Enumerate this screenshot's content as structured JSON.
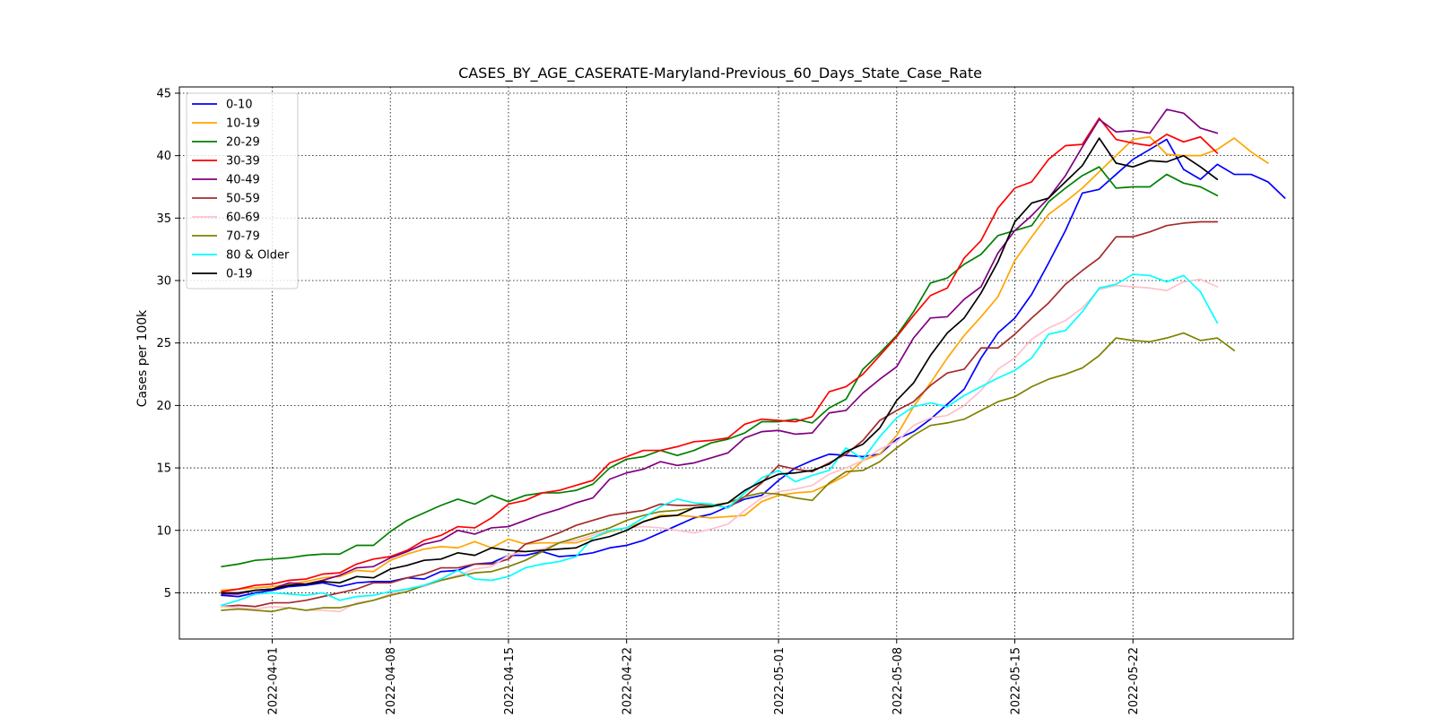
{
  "chart_data": {
    "type": "line",
    "title": "CASES_BY_AGE_CASERATE-Maryland-Previous_60_Days_State_Case_Rate",
    "xlabel": "",
    "ylabel": "Cases per 100k",
    "x_start": "2022-03-29",
    "x_range": [
      -2.5,
      63.5
    ],
    "ylim": [
      1.3,
      45.5
    ],
    "y_ticks": [
      5,
      10,
      15,
      20,
      25,
      30,
      35,
      40,
      45
    ],
    "x_ticks": [
      {
        "label": "2022-04-01",
        "day": 3
      },
      {
        "label": "2022-04-08",
        "day": 10
      },
      {
        "label": "2022-04-15",
        "day": 17
      },
      {
        "label": "2022-04-22",
        "day": 24
      },
      {
        "label": "2022-05-01",
        "day": 33
      },
      {
        "label": "2022-05-08",
        "day": 40
      },
      {
        "label": "2022-05-15",
        "day": 47
      },
      {
        "label": "2022-05-22",
        "day": 54
      }
    ],
    "grid": true,
    "legend_position": "upper-left",
    "series": [
      {
        "name": "0-10",
        "color": "#0000ff",
        "values": [
          4.8,
          4.7,
          5.0,
          5.2,
          5.5,
          5.6,
          5.8,
          5.5,
          5.8,
          5.9,
          5.9,
          6.2,
          6.1,
          6.7,
          6.8,
          7.3,
          7.4,
          8.0,
          8.0,
          8.3,
          7.9,
          8.0,
          8.2,
          8.6,
          8.8,
          9.2,
          9.8,
          10.4,
          11.0,
          11.3,
          11.9,
          12.5,
          12.8,
          14.0,
          15.0,
          15.6,
          16.1,
          16.0,
          15.9,
          16.1,
          17.3,
          17.9,
          18.9,
          20.1,
          21.3,
          23.8,
          25.8,
          27.0,
          28.9,
          31.4,
          34.0,
          37.0,
          37.3,
          38.5,
          39.7,
          40.5,
          41.3,
          38.9,
          38.1,
          39.3,
          38.5,
          38.5,
          37.9,
          36.6
        ]
      },
      {
        "name": "10-19",
        "color": "#ffa500",
        "values": [
          5.2,
          5.3,
          5.4,
          5.5,
          5.7,
          5.9,
          6.2,
          6.3,
          6.8,
          6.7,
          7.6,
          8.1,
          8.5,
          8.7,
          8.6,
          9.1,
          8.6,
          9.3,
          8.9,
          9.0,
          9.0,
          9.0,
          9.4,
          9.9,
          10.2,
          10.7,
          11.2,
          11.2,
          11.1,
          11.0,
          11.1,
          11.2,
          12.3,
          12.8,
          13.0,
          13.1,
          13.7,
          14.4,
          15.6,
          16.1,
          17.6,
          19.9,
          21.8,
          23.8,
          25.6,
          27.1,
          28.7,
          31.6,
          33.5,
          35.3,
          36.3,
          37.4,
          38.7,
          40.0,
          41.3,
          41.5,
          40.1,
          40.0,
          40.0,
          40.5,
          41.4,
          40.3,
          39.4
        ]
      },
      {
        "name": "20-29",
        "color": "#008000",
        "values": [
          7.1,
          7.3,
          7.6,
          7.7,
          7.8,
          8.0,
          8.1,
          8.1,
          8.8,
          8.8,
          9.9,
          10.8,
          11.4,
          12.0,
          12.5,
          12.1,
          12.8,
          12.3,
          12.8,
          13.0,
          13.0,
          13.2,
          13.7,
          15.0,
          15.7,
          15.9,
          16.4,
          16.0,
          16.4,
          17.0,
          17.3,
          17.8,
          18.7,
          18.7,
          18.9,
          18.6,
          19.8,
          20.5,
          22.9,
          24.2,
          25.6,
          27.5,
          29.8,
          30.2,
          31.3,
          32.1,
          33.6,
          34.0,
          34.4,
          36.3,
          37.4,
          38.4,
          39.1,
          37.4,
          37.5,
          37.5,
          38.5,
          37.8,
          37.5,
          36.8
        ]
      },
      {
        "name": "30-39",
        "color": "#ff0000",
        "values": [
          5.1,
          5.3,
          5.6,
          5.7,
          6.0,
          6.1,
          6.5,
          6.6,
          7.3,
          7.7,
          7.9,
          8.4,
          9.2,
          9.6,
          10.3,
          10.2,
          11.0,
          12.1,
          12.4,
          13.0,
          13.2,
          13.6,
          14.0,
          15.4,
          15.9,
          16.4,
          16.4,
          16.7,
          17.1,
          17.2,
          17.4,
          18.5,
          18.9,
          18.8,
          18.7,
          19.1,
          21.1,
          21.5,
          22.5,
          24.0,
          25.5,
          27.2,
          28.8,
          29.4,
          31.8,
          33.2,
          35.8,
          37.4,
          37.9,
          39.7,
          40.8,
          40.9,
          43.0,
          41.3,
          41.0,
          40.8,
          41.7,
          41.1,
          41.5,
          40.2
        ]
      },
      {
        "name": "40-49",
        "color": "#800080",
        "values": [
          4.9,
          4.9,
          5.2,
          5.3,
          5.8,
          5.7,
          6.0,
          6.4,
          7.0,
          7.1,
          7.8,
          8.3,
          8.9,
          9.2,
          10.0,
          9.7,
          10.2,
          10.3,
          10.8,
          11.3,
          11.7,
          12.2,
          12.6,
          14.1,
          14.6,
          14.9,
          15.5,
          15.2,
          15.4,
          15.8,
          16.2,
          17.4,
          17.9,
          18.0,
          17.7,
          17.8,
          19.4,
          19.6,
          21.0,
          22.1,
          23.1,
          25.4,
          27.0,
          27.1,
          28.5,
          29.5,
          32.2,
          34.0,
          35.2,
          36.6,
          38.4,
          40.7,
          42.9,
          41.9,
          42.0,
          41.8,
          43.7,
          43.4,
          42.2,
          41.8
        ]
      },
      {
        "name": "50-59",
        "color": "#a52a2a",
        "values": [
          3.9,
          4.0,
          3.9,
          4.2,
          4.2,
          4.4,
          4.7,
          5.0,
          5.3,
          5.8,
          5.8,
          6.2,
          6.5,
          7.0,
          7.0,
          7.3,
          7.3,
          7.7,
          8.9,
          9.3,
          9.8,
          10.4,
          10.8,
          11.2,
          11.4,
          11.6,
          12.1,
          12.0,
          12.0,
          12.1,
          11.8,
          12.7,
          13.8,
          15.2,
          14.9,
          14.7,
          15.4,
          16.1,
          17.2,
          18.8,
          19.6,
          20.3,
          21.6,
          22.6,
          22.9,
          24.6,
          24.6,
          25.7,
          27.0,
          28.2,
          29.7,
          30.8,
          31.8,
          33.5,
          33.5,
          33.9,
          34.4,
          34.6,
          34.7,
          34.7
        ]
      },
      {
        "name": "60-69",
        "color": "#ffc0cb",
        "values": [
          3.9,
          3.8,
          3.7,
          3.9,
          3.8,
          3.6,
          3.6,
          3.5,
          4.2,
          4.4,
          4.9,
          5.3,
          5.5,
          6.0,
          6.4,
          6.9,
          7.1,
          8.0,
          8.3,
          8.5,
          9.0,
          9.2,
          9.6,
          10.0,
          10.2,
          10.3,
          10.2,
          10.0,
          9.8,
          10.1,
          10.5,
          11.6,
          12.6,
          13.1,
          13.3,
          13.6,
          14.5,
          15.0,
          15.6,
          16.5,
          17.1,
          18.4,
          19.0,
          19.2,
          20.0,
          21.2,
          22.9,
          23.8,
          25.3,
          26.2,
          26.8,
          27.8,
          29.3,
          29.6,
          29.5,
          29.4,
          29.2,
          29.9,
          30.1,
          29.5
        ]
      },
      {
        "name": "70-79",
        "color": "#808000",
        "values": [
          3.6,
          3.7,
          3.6,
          3.5,
          3.8,
          3.6,
          3.8,
          3.8,
          4.1,
          4.4,
          4.8,
          5.1,
          5.6,
          6.0,
          6.3,
          6.6,
          6.7,
          7.1,
          7.6,
          8.3,
          9.0,
          9.4,
          9.8,
          10.2,
          10.8,
          11.2,
          11.5,
          11.6,
          11.8,
          12.0,
          12.2,
          12.7,
          13.0,
          12.9,
          12.6,
          12.4,
          13.8,
          14.7,
          14.8,
          15.5,
          16.6,
          17.6,
          18.4,
          18.6,
          18.9,
          19.6,
          20.3,
          20.7,
          21.5,
          22.1,
          22.5,
          23.0,
          24.0,
          25.4,
          25.2,
          25.1,
          25.4,
          25.8,
          25.2,
          25.4,
          24.4
        ]
      },
      {
        "name": "80 & Older",
        "color": "#00ffff",
        "values": [
          4.0,
          4.4,
          4.9,
          5.0,
          4.9,
          4.8,
          5.0,
          4.4,
          4.7,
          4.8,
          5.1,
          5.3,
          5.6,
          6.1,
          6.8,
          6.1,
          6.0,
          6.3,
          7.0,
          7.3,
          7.5,
          7.9,
          9.4,
          10.0,
          10.2,
          11.0,
          11.9,
          12.5,
          12.2,
          12.1,
          11.8,
          13.0,
          14.2,
          14.8,
          13.9,
          14.4,
          14.8,
          16.6,
          15.7,
          17.5,
          19.0,
          19.9,
          20.2,
          19.9,
          20.8,
          21.5,
          22.2,
          22.8,
          23.8,
          25.7,
          26.0,
          27.5,
          29.4,
          29.7,
          30.5,
          30.4,
          29.9,
          30.4,
          29.1,
          26.6
        ]
      },
      {
        "name": "0-19",
        "color": "#000000",
        "values": [
          5.0,
          5.0,
          5.2,
          5.3,
          5.6,
          5.7,
          5.9,
          5.8,
          6.3,
          6.2,
          6.9,
          7.2,
          7.6,
          7.7,
          8.2,
          8.0,
          8.6,
          8.4,
          8.3,
          8.4,
          8.5,
          8.6,
          9.2,
          9.5,
          10.0,
          10.7,
          11.1,
          11.2,
          11.8,
          11.9,
          12.2,
          13.2,
          13.9,
          14.5,
          14.6,
          14.8,
          15.3,
          16.3,
          16.9,
          18.2,
          20.4,
          21.8,
          24.0,
          25.8,
          27.0,
          29.0,
          31.5,
          34.7,
          36.2,
          36.6,
          37.9,
          39.2,
          41.4,
          39.4,
          39.1,
          39.6,
          39.5,
          40.0,
          39.1,
          38.1
        ]
      }
    ]
  }
}
